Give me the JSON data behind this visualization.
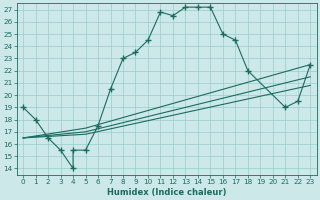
{
  "xlabel": "Humidex (Indice chaleur)",
  "bg_color": "#cce8e8",
  "line_color": "#1a6b62",
  "grid_color": "#99cccc",
  "xlim": [
    -0.5,
    23.5
  ],
  "ylim": [
    13.5,
    27.5
  ],
  "xticks": [
    0,
    1,
    2,
    3,
    4,
    5,
    6,
    7,
    8,
    9,
    10,
    11,
    12,
    13,
    14,
    15,
    16,
    17,
    18,
    19,
    20,
    21,
    22,
    23
  ],
  "yticks": [
    14,
    15,
    16,
    17,
    18,
    19,
    20,
    21,
    22,
    23,
    24,
    25,
    26,
    27
  ],
  "main_x": [
    0,
    1,
    2,
    3,
    4,
    4,
    5,
    6,
    7,
    8,
    9,
    10,
    11,
    12,
    13,
    14,
    15,
    16,
    17,
    18,
    21,
    22,
    23
  ],
  "main_y": [
    19,
    18,
    16.5,
    15.5,
    14.0,
    15.5,
    15.5,
    17.5,
    20.5,
    23.0,
    23.5,
    24.5,
    26.8,
    26.5,
    27.2,
    27.2,
    27.2,
    25.0,
    24.5,
    22.0,
    19.0,
    19.5,
    22.5
  ],
  "line2_x": [
    0,
    5,
    23
  ],
  "line2_y": [
    16.5,
    17.3,
    22.5
  ],
  "line3_x": [
    0,
    5,
    23
  ],
  "line3_y": [
    16.5,
    17.0,
    21.5
  ],
  "line4_x": [
    0,
    5,
    23
  ],
  "line4_y": [
    16.5,
    16.8,
    20.8
  ]
}
